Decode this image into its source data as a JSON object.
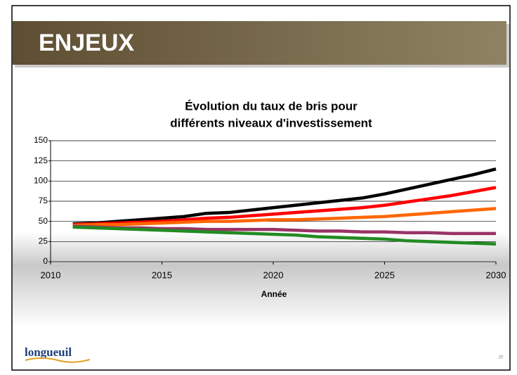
{
  "slide": {
    "heading": "ENJEUX",
    "logo": "longueuil",
    "page_number": "20"
  },
  "chart_data": {
    "type": "line",
    "title": [
      "Évolution du taux de bris pour",
      "différents niveaux d'investissement"
    ],
    "x_label": "Année",
    "x": [
      2011,
      2012,
      2013,
      2014,
      2015,
      2016,
      2017,
      2018,
      2019,
      2020,
      2021,
      2022,
      2023,
      2024,
      2025,
      2026,
      2027,
      2028,
      2029,
      2030
    ],
    "series": [
      {
        "color": "#000000",
        "values": [
          47,
          48,
          50,
          52,
          54,
          56,
          60,
          61,
          64,
          67,
          70,
          73,
          76,
          79,
          84,
          90,
          96,
          102,
          108,
          115
        ]
      },
      {
        "color": "#ff0000",
        "values": [
          46,
          47,
          48,
          49,
          50,
          52,
          54,
          55,
          57,
          59,
          61,
          63,
          65,
          67,
          70,
          74,
          78,
          82,
          87,
          92
        ]
      },
      {
        "color": "#ff6600",
        "values": [
          45,
          46,
          46,
          47,
          48,
          49,
          50,
          50,
          51,
          52,
          52,
          53,
          54,
          55,
          56,
          58,
          60,
          62,
          64,
          66
        ]
      },
      {
        "color": "#993366",
        "values": [
          44,
          43,
          42,
          42,
          41,
          41,
          40,
          40,
          40,
          40,
          39,
          38,
          38,
          37,
          37,
          36,
          36,
          35,
          35,
          35
        ]
      },
      {
        "color": "#228b22",
        "values": [
          43,
          42,
          41,
          40,
          39,
          38,
          37,
          36,
          35,
          34,
          33,
          31,
          30,
          29,
          28,
          26,
          25,
          24,
          23,
          22
        ]
      }
    ],
    "xlim": [
      2010,
      2030
    ],
    "xticks": [
      2010,
      2015,
      2020,
      2025,
      2030
    ],
    "ylim": [
      0,
      150
    ],
    "yticks": [
      0,
      25,
      50,
      75,
      100,
      125,
      150
    ],
    "grid": true
  }
}
